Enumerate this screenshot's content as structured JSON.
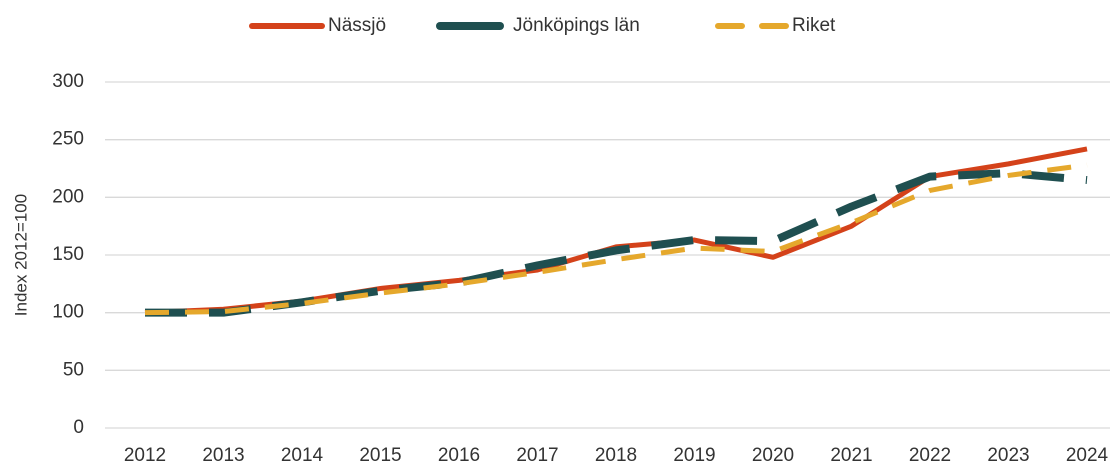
{
  "chart_data": {
    "type": "line",
    "y_label": "Index 2012=100",
    "categories": [
      "2012",
      "2013",
      "2014",
      "2015",
      "2016",
      "2017",
      "2018",
      "2019",
      "2020",
      "2021",
      "2022",
      "2023",
      "2024"
    ],
    "series": [
      {
        "name": "Nässjö",
        "color": "#d4421a",
        "style": "solid",
        "values": [
          100,
          103,
          110,
          121,
          128,
          137,
          157,
          163,
          148,
          175,
          218,
          229,
          242
        ]
      },
      {
        "name": "Jönköpings län",
        "color": "#1f4f50",
        "style": "long-dash",
        "values": [
          100,
          100,
          109,
          119,
          126,
          141,
          154,
          163,
          162,
          192,
          218,
          221,
          215
        ]
      },
      {
        "name": "Riket",
        "color": "#e5a82c",
        "style": "dash",
        "values": [
          100,
          101,
          108,
          117,
          125,
          135,
          146,
          156,
          153,
          178,
          206,
          219,
          228
        ]
      }
    ],
    "ylim": [
      0,
      300
    ],
    "yticks": [
      0,
      50,
      100,
      150,
      200,
      250,
      300
    ],
    "grid": true,
    "legend": "top"
  }
}
